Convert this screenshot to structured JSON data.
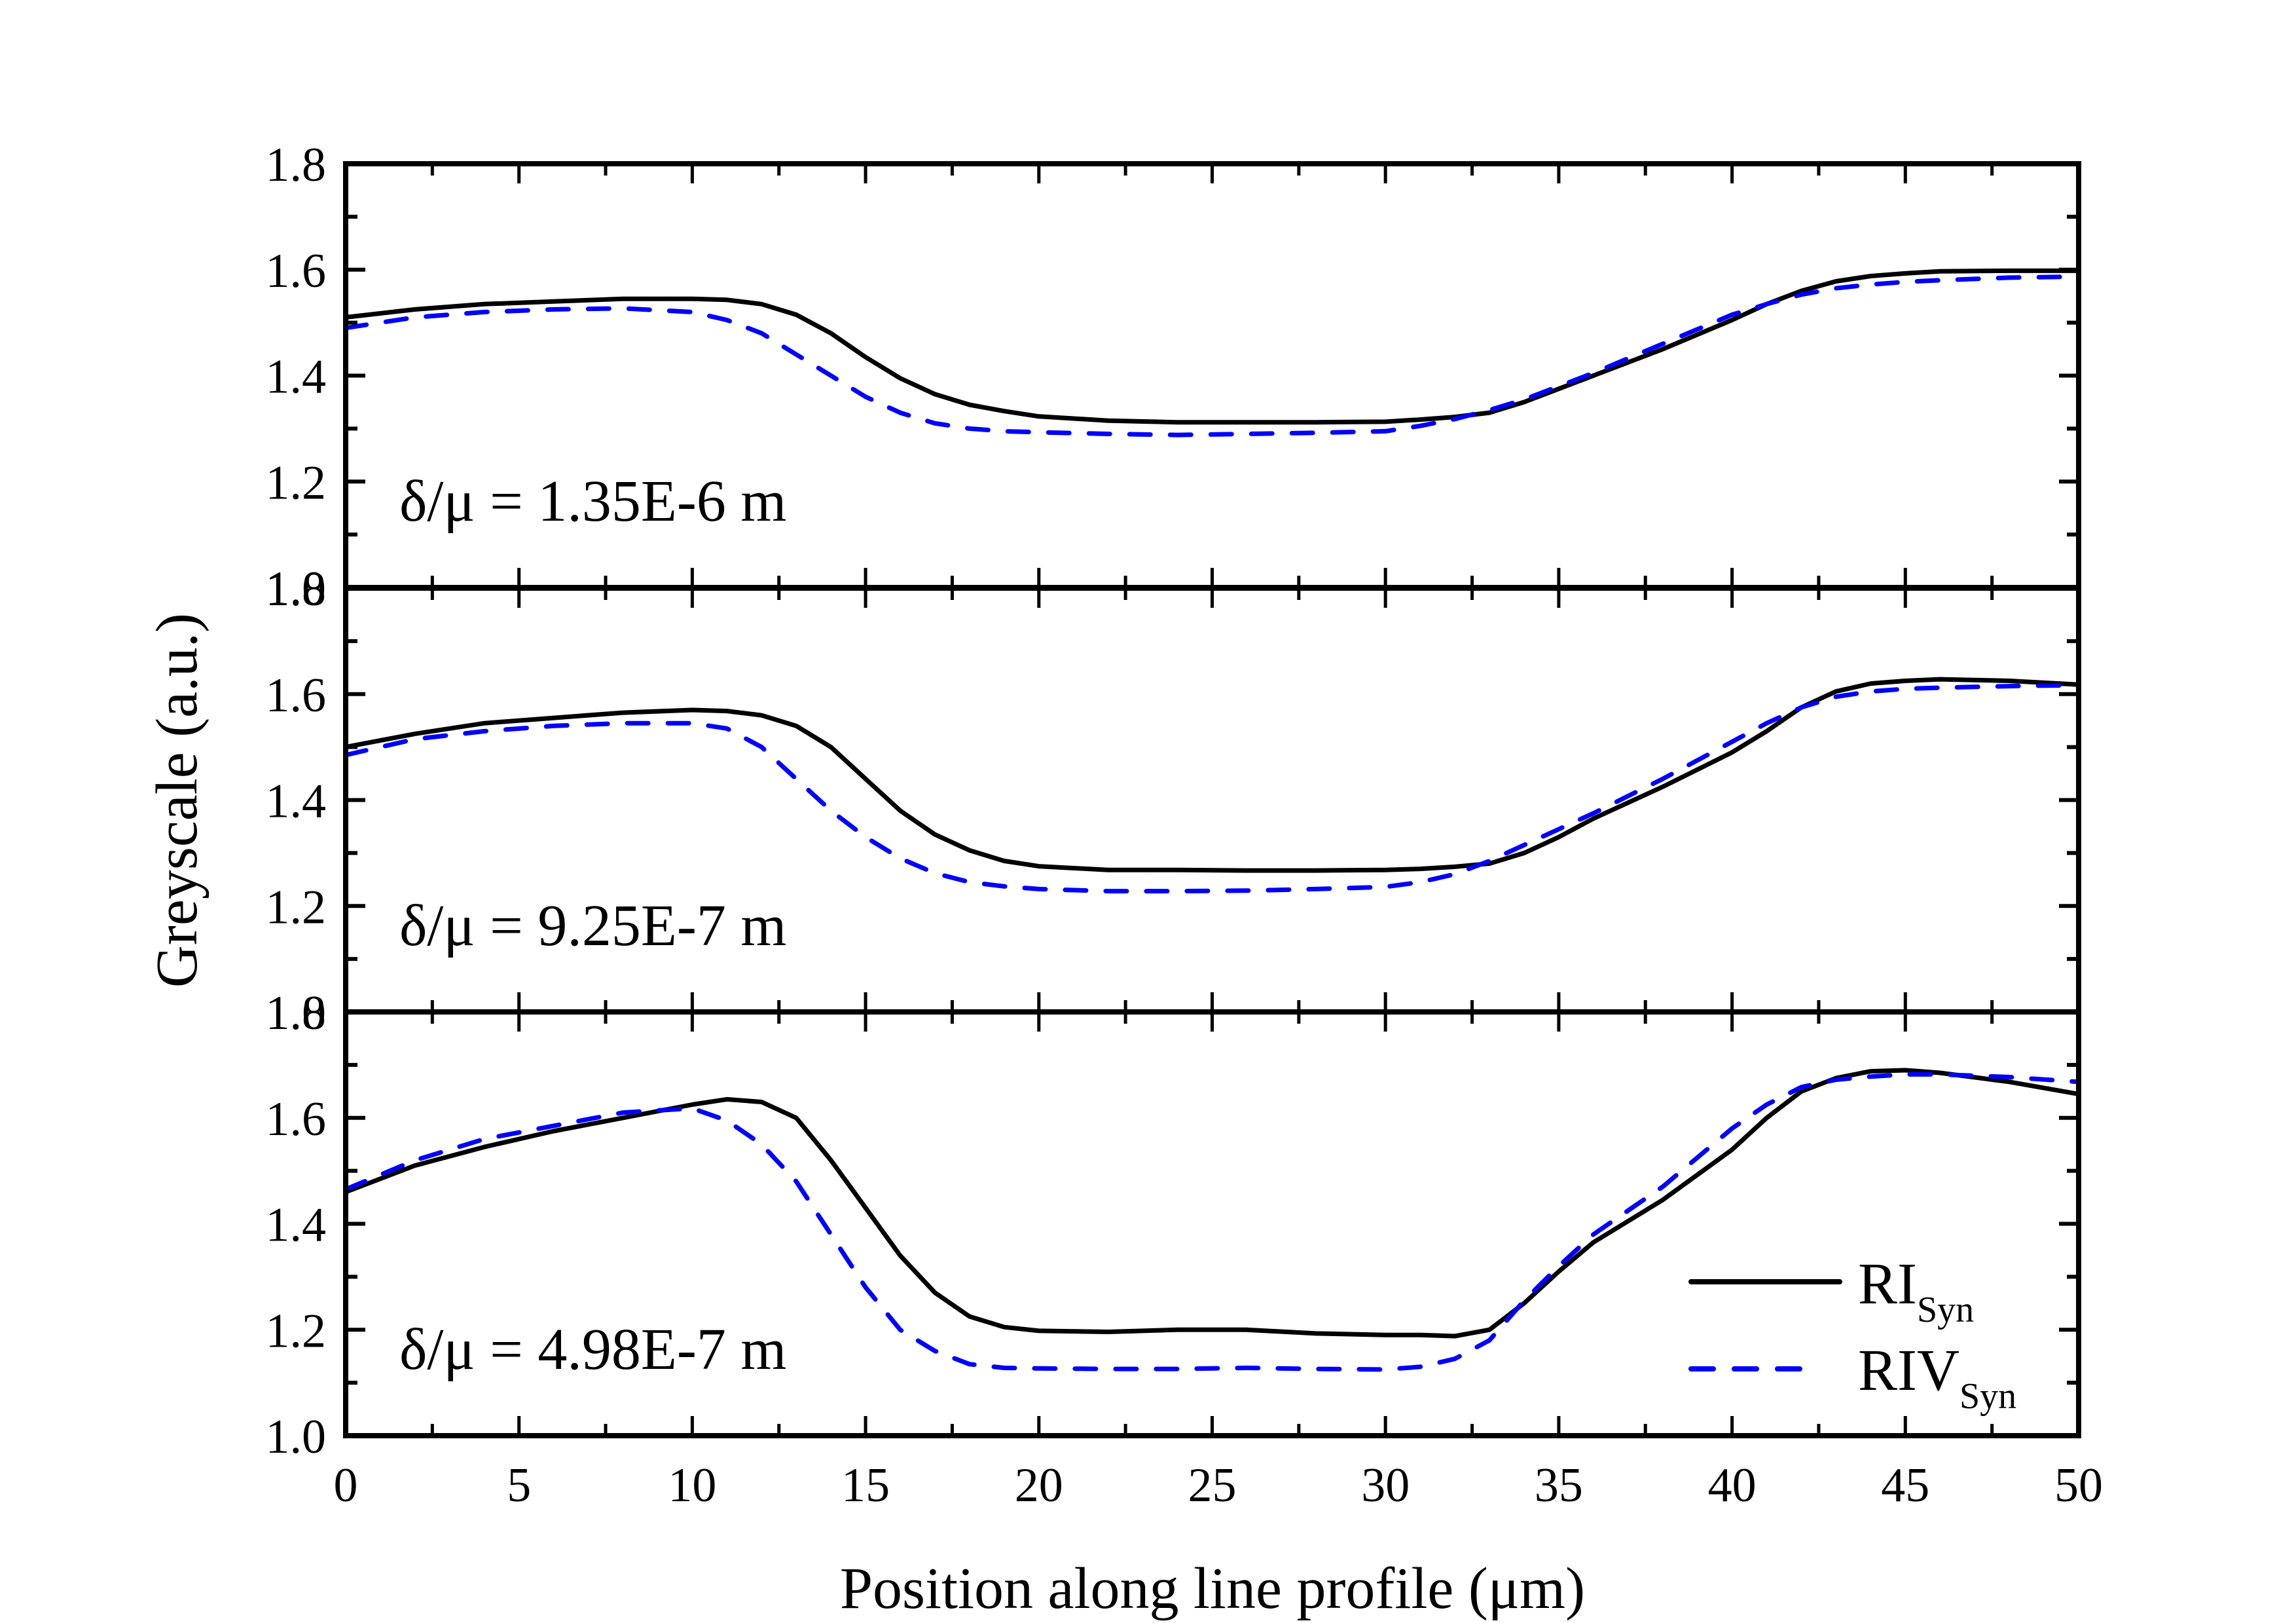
{
  "chart_data": {
    "type": "line",
    "xlabel": "Position along line profile (μm)",
    "ylabel": "Greyscale (a.u.)",
    "xlim": [
      0,
      50
    ],
    "xticks": [
      "0",
      "5",
      "10",
      "15",
      "20",
      "25",
      "30",
      "35",
      "40",
      "45",
      "50"
    ],
    "ylim": [
      1.0,
      1.8
    ],
    "yticks": [
      "1.0",
      "1.2",
      "1.4",
      "1.6",
      "1.8"
    ],
    "grid": false,
    "legend": {
      "placement": "bottom-right of lowest panel",
      "entries": [
        {
          "name": "RI",
          "subscript": "Syn",
          "style": "solid",
          "color": "#000000"
        },
        {
          "name": "RIV",
          "subscript": "Syn",
          "style": "dashed",
          "color": "#0000ff"
        }
      ]
    },
    "x": [
      0,
      2,
      4,
      6,
      8,
      10,
      11,
      12,
      13,
      14,
      15,
      16,
      17,
      18,
      19,
      20,
      22,
      24,
      26,
      28,
      30,
      31,
      32,
      33,
      34,
      35,
      36,
      38,
      40,
      41,
      42,
      43,
      44,
      45,
      46,
      48,
      50
    ],
    "panels": [
      {
        "annotation": "δ/μ = 1.35E-6 m",
        "series": [
          {
            "name": "RI_Syn",
            "values": [
              1.51,
              1.525,
              1.535,
              1.54,
              1.545,
              1.545,
              1.543,
              1.535,
              1.515,
              1.48,
              1.435,
              1.395,
              1.365,
              1.345,
              1.333,
              1.323,
              1.315,
              1.312,
              1.312,
              1.312,
              1.313,
              1.317,
              1.322,
              1.33,
              1.35,
              1.375,
              1.4,
              1.45,
              1.505,
              1.535,
              1.56,
              1.578,
              1.588,
              1.593,
              1.597,
              1.598,
              1.598
            ]
          },
          {
            "name": "RIV_Syn",
            "values": [
              1.49,
              1.51,
              1.52,
              1.525,
              1.527,
              1.52,
              1.505,
              1.48,
              1.44,
              1.4,
              1.36,
              1.33,
              1.31,
              1.3,
              1.295,
              1.293,
              1.29,
              1.288,
              1.29,
              1.292,
              1.295,
              1.305,
              1.318,
              1.335,
              1.355,
              1.38,
              1.405,
              1.46,
              1.515,
              1.535,
              1.553,
              1.565,
              1.572,
              1.577,
              1.58,
              1.585,
              1.587
            ]
          }
        ]
      },
      {
        "annotation": "δ/μ = 9.25E-7 m",
        "series": [
          {
            "name": "RI_Syn",
            "values": [
              1.5,
              1.525,
              1.545,
              1.555,
              1.565,
              1.57,
              1.568,
              1.56,
              1.54,
              1.5,
              1.44,
              1.38,
              1.335,
              1.305,
              1.285,
              1.275,
              1.268,
              1.268,
              1.267,
              1.267,
              1.268,
              1.27,
              1.274,
              1.28,
              1.3,
              1.33,
              1.365,
              1.425,
              1.49,
              1.53,
              1.575,
              1.605,
              1.62,
              1.625,
              1.628,
              1.625,
              1.618
            ]
          },
          {
            "name": "RIV_Syn",
            "values": [
              1.485,
              1.515,
              1.53,
              1.54,
              1.545,
              1.545,
              1.535,
              1.5,
              1.44,
              1.38,
              1.33,
              1.29,
              1.262,
              1.245,
              1.237,
              1.232,
              1.228,
              1.228,
              1.229,
              1.232,
              1.236,
              1.245,
              1.26,
              1.285,
              1.315,
              1.345,
              1.375,
              1.44,
              1.51,
              1.545,
              1.575,
              1.595,
              1.605,
              1.61,
              1.612,
              1.615,
              1.617
            ]
          }
        ]
      },
      {
        "annotation": "δ/μ = 4.98E-7 m",
        "series": [
          {
            "name": "RI_Syn",
            "values": [
              1.46,
              1.51,
              1.545,
              1.575,
              1.6,
              1.625,
              1.635,
              1.63,
              1.6,
              1.52,
              1.43,
              1.34,
              1.27,
              1.225,
              1.205,
              1.198,
              1.196,
              1.2,
              1.2,
              1.193,
              1.19,
              1.19,
              1.188,
              1.2,
              1.25,
              1.31,
              1.365,
              1.445,
              1.54,
              1.6,
              1.65,
              1.675,
              1.688,
              1.69,
              1.685,
              1.668,
              1.645
            ]
          },
          {
            "name": "RIV_Syn",
            "values": [
              1.465,
              1.52,
              1.56,
              1.585,
              1.61,
              1.618,
              1.595,
              1.55,
              1.48,
              1.38,
              1.28,
              1.2,
              1.16,
              1.135,
              1.128,
              1.127,
              1.126,
              1.126,
              1.128,
              1.126,
              1.125,
              1.13,
              1.145,
              1.18,
              1.255,
              1.32,
              1.38,
              1.47,
              1.58,
              1.625,
              1.658,
              1.672,
              1.678,
              1.682,
              1.682,
              1.677,
              1.668
            ]
          }
        ]
      }
    ]
  }
}
